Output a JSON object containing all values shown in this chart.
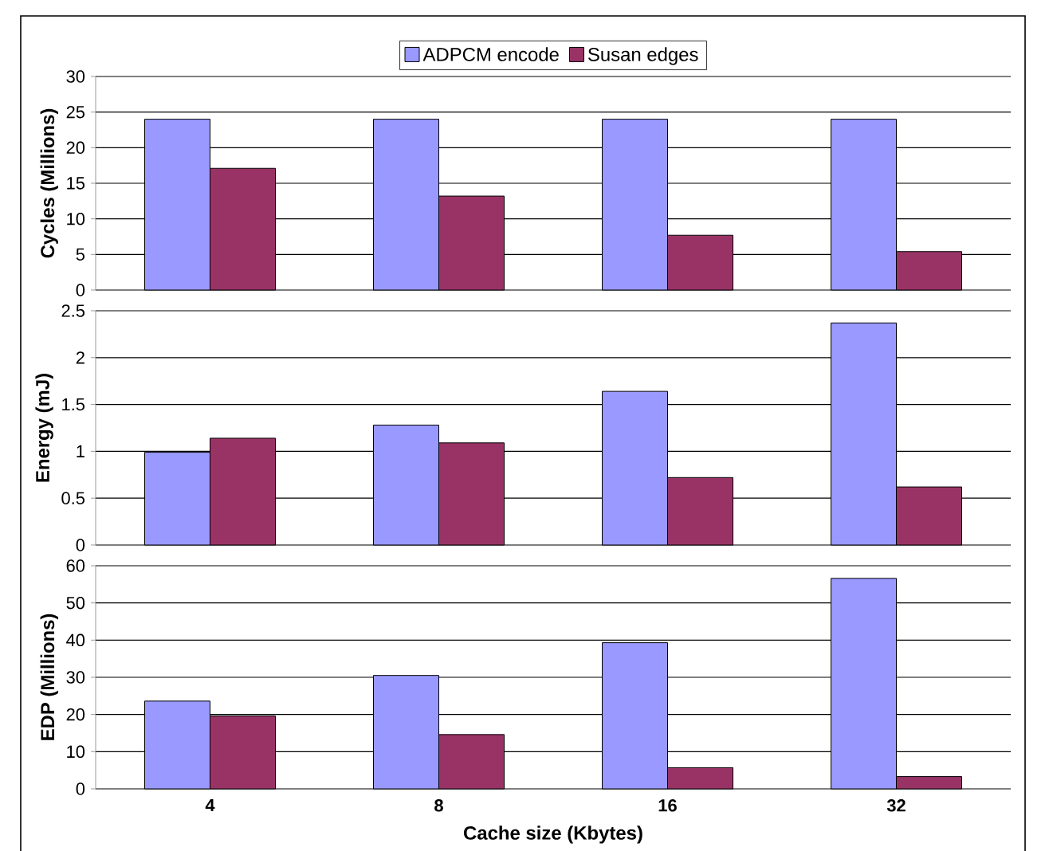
{
  "chart_data": [
    {
      "type": "bar",
      "categories": [
        "4",
        "8",
        "16",
        "32"
      ],
      "ylabel": "Cycles (Millions)",
      "ylim": [
        0,
        30
      ],
      "yticks": [
        0,
        5,
        10,
        15,
        20,
        25,
        30
      ],
      "grid": "y",
      "legend": "top",
      "tick_labels": "y",
      "series": [
        {
          "name": "ADPCM encode",
          "color": "#9999ff",
          "values": [
            24,
            24,
            24,
            24
          ]
        },
        {
          "name": "Susan edges",
          "color": "#993366",
          "values": [
            17.1,
            13.2,
            7.7,
            5.4
          ]
        }
      ]
    },
    {
      "type": "bar",
      "categories": [
        "4",
        "8",
        "16",
        "32"
      ],
      "ylabel": "Energy (mJ)",
      "ylim": [
        0,
        2.5
      ],
      "yticks": [
        0,
        0.5,
        1,
        1.5,
        2,
        2.5
      ],
      "grid": "y",
      "tick_labels": "y",
      "series": [
        {
          "color": "#9999ff",
          "values": [
            0.99,
            1.28,
            1.64,
            2.37
          ]
        },
        {
          "color": "#993366",
          "values": [
            1.14,
            1.09,
            0.72,
            0.62
          ]
        }
      ]
    },
    {
      "type": "bar",
      "categories": [
        "4",
        "8",
        "16",
        "32"
      ],
      "xlabel": "Cache size (Kbytes)",
      "ylabel": "EDP (Millions)",
      "ylim": [
        0,
        60
      ],
      "yticks": [
        0,
        10,
        20,
        30,
        40,
        50,
        60
      ],
      "grid": "y",
      "series": [
        {
          "color": "#9999ff",
          "values": [
            23.6,
            30.5,
            39.3,
            56.6
          ]
        },
        {
          "color": "#993366",
          "values": [
            19.6,
            14.6,
            5.7,
            3.3
          ]
        }
      ]
    }
  ]
}
